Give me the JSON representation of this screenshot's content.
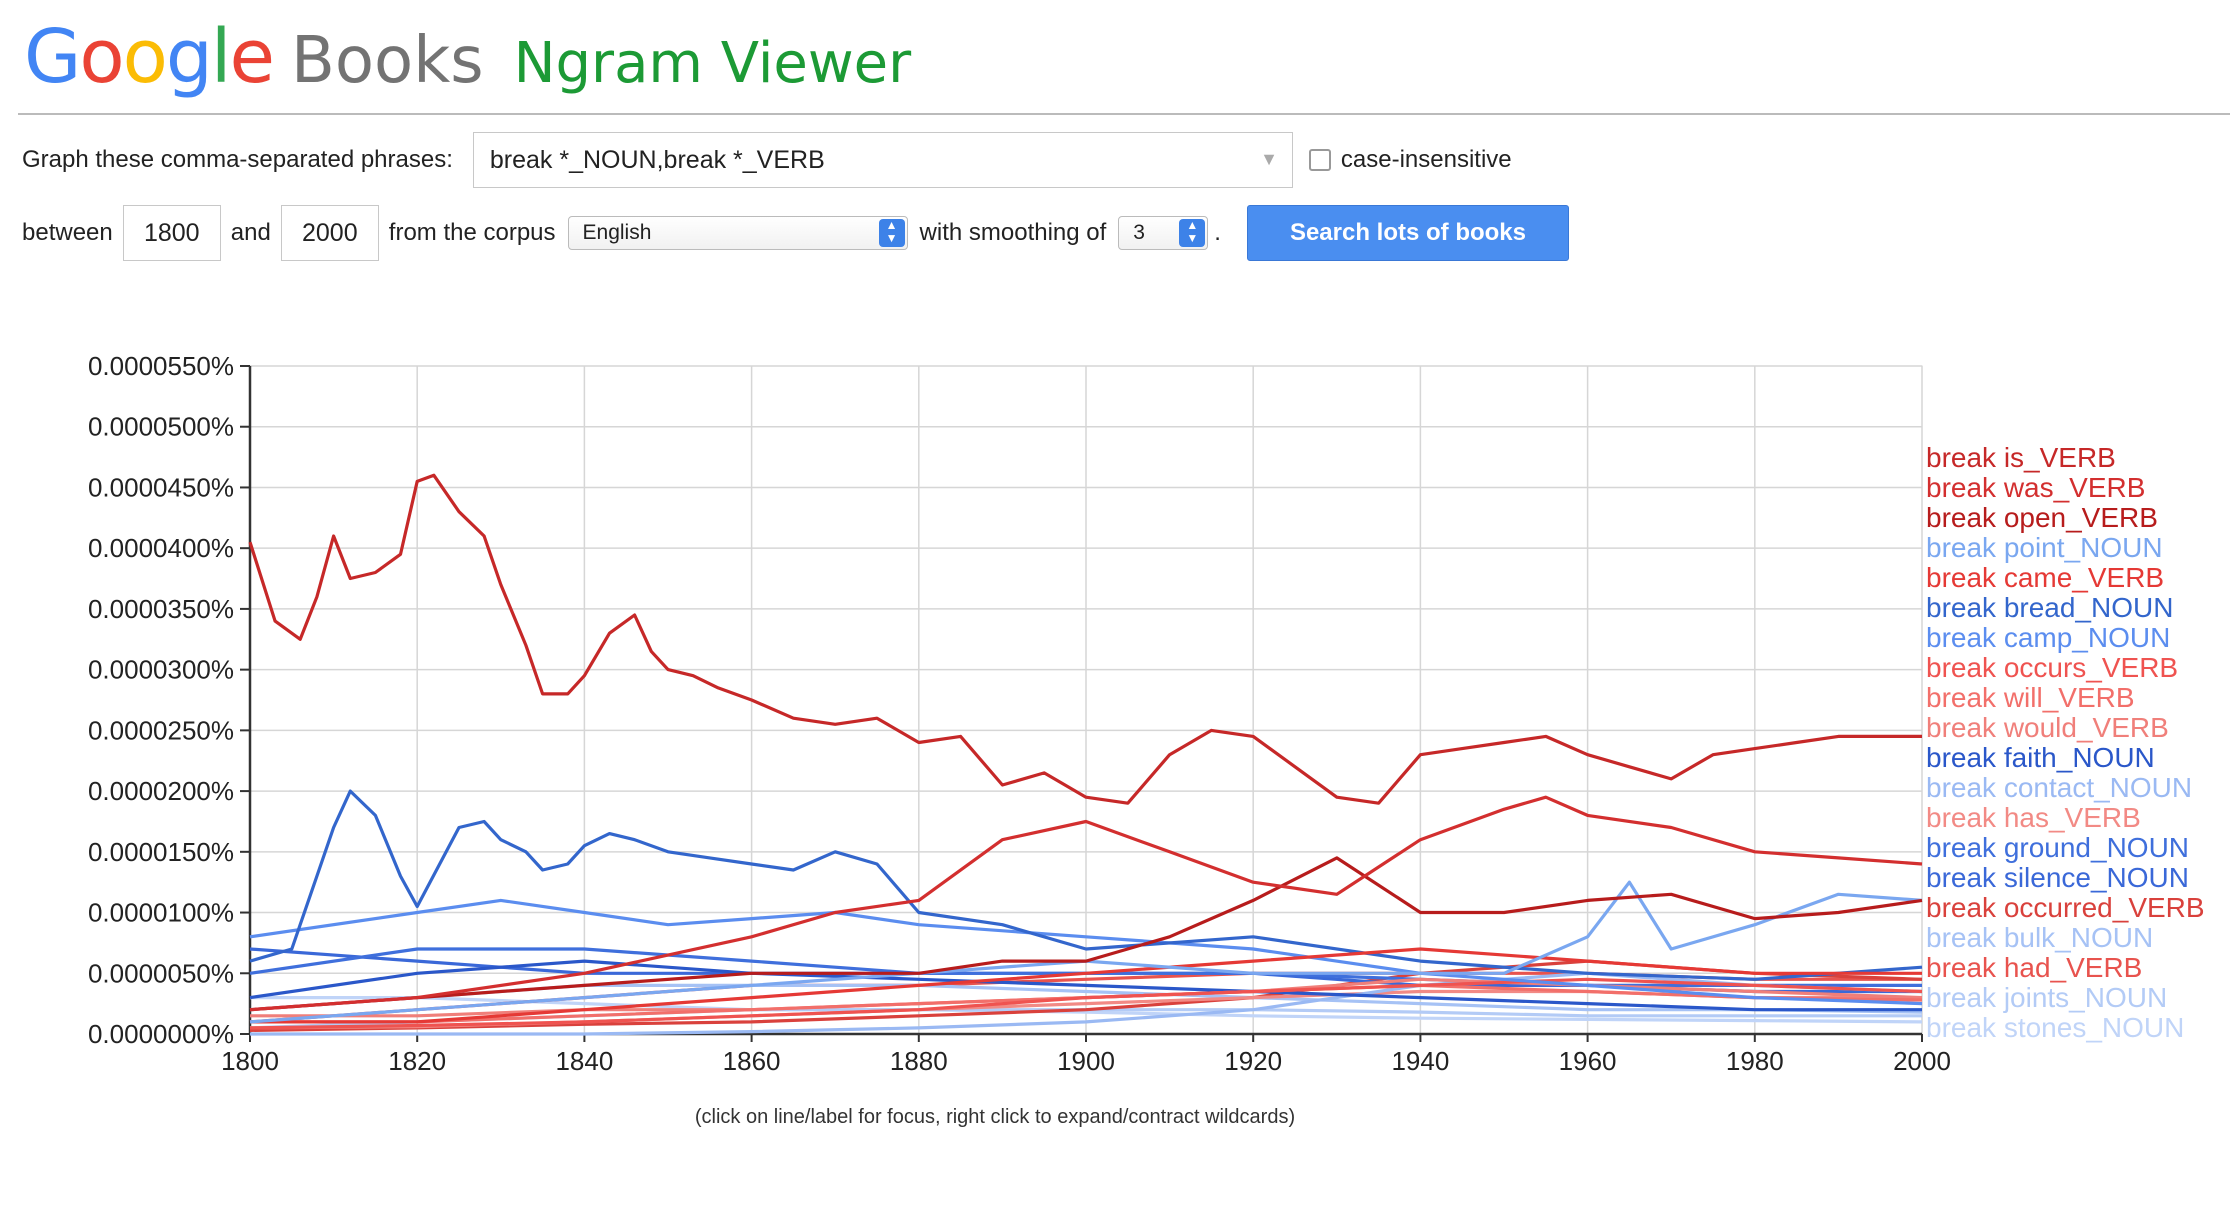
{
  "header": {
    "logo_letters": [
      {
        "ch": "G",
        "color": "#4285f4"
      },
      {
        "ch": "o",
        "color": "#ea4335"
      },
      {
        "ch": "o",
        "color": "#fbbc05"
      },
      {
        "ch": "g",
        "color": "#4285f4"
      },
      {
        "ch": "l",
        "color": "#34a853"
      },
      {
        "ch": "e",
        "color": "#ea4335"
      }
    ],
    "books": "Books",
    "title": "Ngram Viewer"
  },
  "form": {
    "phrases_label": "Graph these comma-separated phrases:",
    "phrases_value": "break *_NOUN,break *_VERB",
    "case_label": "case-insensitive",
    "between_label": "between",
    "start_year": "1800",
    "and_label": "and",
    "end_year": "2000",
    "corpus_label": "from the corpus",
    "corpus_value": "English",
    "smoothing_label": "with smoothing of",
    "smoothing_value": "3",
    "period": ".",
    "search_label": "Search lots of books"
  },
  "hint": "(click on line/label for focus, right click to expand/contract wildcards)",
  "chart_data": {
    "type": "line",
    "xlim": [
      1800,
      2000
    ],
    "ylim": [
      0,
      5.5e-05
    ],
    "x_ticks": [
      "1800",
      "1820",
      "1840",
      "1860",
      "1880",
      "1900",
      "1920",
      "1940",
      "1960",
      "1980",
      "2000"
    ],
    "y_ticks": [
      "0.0000000%",
      "0.0000050%",
      "0.0000100%",
      "0.0000150%",
      "0.0000200%",
      "0.0000250%",
      "0.0000300%",
      "0.0000350%",
      "0.0000400%",
      "0.0000450%",
      "0.0000500%",
      "0.0000550%"
    ],
    "grid": true,
    "legend_position": "right",
    "series": [
      {
        "name": "break is_VERB",
        "color": "#c62828",
        "x": [
          1800,
          1803,
          1806,
          1808,
          1810,
          1812,
          1815,
          1818,
          1820,
          1822,
          1825,
          1828,
          1830,
          1833,
          1835,
          1838,
          1840,
          1843,
          1846,
          1848,
          1850,
          1853,
          1856,
          1860,
          1865,
          1870,
          1875,
          1880,
          1885,
          1890,
          1895,
          1900,
          1905,
          1910,
          1915,
          1920,
          1925,
          1930,
          1935,
          1940,
          1945,
          1950,
          1955,
          1960,
          1965,
          1970,
          1975,
          1980,
          1985,
          1990,
          1995,
          2000
        ],
        "y": [
          4.05e-05,
          3.4e-05,
          3.25e-05,
          3.6e-05,
          4.1e-05,
          3.75e-05,
          3.8e-05,
          3.95e-05,
          4.55e-05,
          4.6e-05,
          4.3e-05,
          4.1e-05,
          3.7e-05,
          3.2e-05,
          2.8e-05,
          2.8e-05,
          2.95e-05,
          3.3e-05,
          3.45e-05,
          3.15e-05,
          3e-05,
          2.95e-05,
          2.85e-05,
          2.75e-05,
          2.6e-05,
          2.55e-05,
          2.6e-05,
          2.4e-05,
          2.45e-05,
          2.05e-05,
          2.15e-05,
          1.95e-05,
          1.9e-05,
          2.3e-05,
          2.5e-05,
          2.45e-05,
          2.2e-05,
          1.95e-05,
          1.9e-05,
          2.3e-05,
          2.35e-05,
          2.4e-05,
          2.45e-05,
          2.3e-05,
          2.2e-05,
          2.1e-05,
          2.3e-05,
          2.35e-05,
          2.4e-05,
          2.45e-05,
          2.45e-05,
          2.45e-05
        ]
      },
      {
        "name": "break was_VERB",
        "color": "#d32f2f",
        "x": [
          1800,
          1820,
          1840,
          1860,
          1870,
          1880,
          1890,
          1900,
          1910,
          1920,
          1930,
          1940,
          1950,
          1955,
          1960,
          1970,
          1980,
          1990,
          2000
        ],
        "y": [
          2e-06,
          3e-06,
          5e-06,
          8e-06,
          1e-05,
          1.1e-05,
          1.6e-05,
          1.75e-05,
          1.5e-05,
          1.25e-05,
          1.15e-05,
          1.6e-05,
          1.85e-05,
          1.95e-05,
          1.8e-05,
          1.7e-05,
          1.5e-05,
          1.45e-05,
          1.4e-05
        ]
      },
      {
        "name": "break open_VERB",
        "color": "#b71c1c",
        "x": [
          1800,
          1820,
          1840,
          1860,
          1880,
          1890,
          1900,
          1910,
          1920,
          1930,
          1940,
          1950,
          1960,
          1970,
          1980,
          1990,
          2000
        ],
        "y": [
          2e-06,
          3e-06,
          4e-06,
          5e-06,
          5e-06,
          6e-06,
          6e-06,
          8e-06,
          1.1e-05,
          1.45e-05,
          1e-05,
          1e-05,
          1.1e-05,
          1.15e-05,
          9.5e-06,
          1e-05,
          1.1e-05
        ]
      },
      {
        "name": "break point_NOUN",
        "color": "#7aa7f0",
        "x": [
          1800,
          1820,
          1840,
          1860,
          1880,
          1900,
          1920,
          1940,
          1950,
          1960,
          1965,
          1970,
          1980,
          1990,
          2000
        ],
        "y": [
          1e-06,
          2e-06,
          3e-06,
          4e-06,
          5e-06,
          6e-06,
          5e-06,
          5e-06,
          5e-06,
          8e-06,
          1.25e-05,
          7e-06,
          9e-06,
          1.15e-05,
          1.1e-05
        ]
      },
      {
        "name": "break came_VERB",
        "color": "#e53935",
        "x": [
          1800,
          1820,
          1840,
          1860,
          1880,
          1900,
          1920,
          1940,
          1960,
          1980,
          2000
        ],
        "y": [
          1e-06,
          1e-06,
          2e-06,
          3e-06,
          4e-06,
          5e-06,
          6e-06,
          7e-06,
          6e-06,
          5e-06,
          5e-06
        ]
      },
      {
        "name": "break bread_NOUN",
        "color": "#3366cc",
        "x": [
          1800,
          1805,
          1808,
          1810,
          1812,
          1815,
          1818,
          1820,
          1825,
          1828,
          1830,
          1833,
          1835,
          1838,
          1840,
          1843,
          1846,
          1850,
          1855,
          1860,
          1865,
          1870,
          1875,
          1880,
          1890,
          1900,
          1920,
          1940,
          1960,
          1980,
          2000
        ],
        "y": [
          6e-06,
          7e-06,
          1.3e-05,
          1.7e-05,
          2e-05,
          1.8e-05,
          1.3e-05,
          1.05e-05,
          1.7e-05,
          1.75e-05,
          1.6e-05,
          1.5e-05,
          1.35e-05,
          1.4e-05,
          1.55e-05,
          1.65e-05,
          1.6e-05,
          1.5e-05,
          1.45e-05,
          1.4e-05,
          1.35e-05,
          1.5e-05,
          1.4e-05,
          1e-05,
          9e-06,
          7e-06,
          8e-06,
          6e-06,
          5e-06,
          4.5e-06,
          5.5e-06
        ]
      },
      {
        "name": "break camp_NOUN",
        "color": "#5b8def",
        "x": [
          1800,
          1820,
          1830,
          1840,
          1850,
          1860,
          1870,
          1880,
          1900,
          1920,
          1940,
          1960,
          1980,
          2000
        ],
        "y": [
          8e-06,
          1e-05,
          1.1e-05,
          1e-05,
          9e-06,
          9.5e-06,
          1e-05,
          9e-06,
          8e-06,
          7e-06,
          5e-06,
          4e-06,
          3e-06,
          2.5e-06
        ]
      },
      {
        "name": "break occurs_VERB",
        "color": "#ef5350",
        "x": [
          1800,
          1820,
          1840,
          1860,
          1880,
          1900,
          1920,
          1940,
          1960,
          1980,
          2000
        ],
        "y": [
          5e-07,
          7e-07,
          1e-06,
          1.5e-06,
          2e-06,
          3e-06,
          3.5e-06,
          4e-06,
          4.5e-06,
          4e-06,
          3.5e-06
        ]
      },
      {
        "name": "break will_VERB",
        "color": "#f26f6a",
        "x": [
          1800,
          1820,
          1840,
          1860,
          1880,
          1900,
          1920,
          1940,
          1960,
          1980,
          2000
        ],
        "y": [
          1e-06,
          1e-06,
          1.5e-06,
          2e-06,
          2.5e-06,
          3e-06,
          3.5e-06,
          4e-06,
          3.5e-06,
          3e-06,
          2.8e-06
        ]
      },
      {
        "name": "break would_VERB",
        "color": "#f07f7a",
        "x": [
          1800,
          1820,
          1840,
          1860,
          1880,
          1900,
          1920,
          1940,
          1960,
          1980,
          2000
        ],
        "y": [
          1.5e-06,
          1.5e-06,
          2e-06,
          2e-06,
          2.5e-06,
          3e-06,
          3.5e-06,
          4.5e-06,
          4e-06,
          3.5e-06,
          3e-06
        ]
      },
      {
        "name": "break faith_NOUN",
        "color": "#2a57c9",
        "x": [
          1800,
          1820,
          1840,
          1860,
          1880,
          1900,
          1920,
          1940,
          1960,
          1980,
          2000
        ],
        "y": [
          3e-06,
          5e-06,
          6e-06,
          5e-06,
          4.5e-06,
          4e-06,
          3.5e-06,
          3e-06,
          2.5e-06,
          2e-06,
          2e-06
        ]
      },
      {
        "name": "break contact_NOUN",
        "color": "#9ab9f3",
        "x": [
          1800,
          1820,
          1840,
          1860,
          1880,
          1900,
          1920,
          1940,
          1960,
          1980,
          2000
        ],
        "y": [
          0,
          0,
          0,
          2e-07,
          5e-07,
          1e-06,
          2e-06,
          4e-06,
          5e-06,
          4e-06,
          3.5e-06
        ]
      },
      {
        "name": "break has_VERB",
        "color": "#f28a85",
        "x": [
          1800,
          1820,
          1840,
          1860,
          1880,
          1900,
          1920,
          1940,
          1960,
          1980,
          2000
        ],
        "y": [
          5e-07,
          6e-07,
          1e-06,
          1.5e-06,
          2e-06,
          2.5e-06,
          3e-06,
          3.5e-06,
          3.5e-06,
          3e-06,
          3e-06
        ]
      },
      {
        "name": "break ground_NOUN",
        "color": "#3f6fdc",
        "x": [
          1800,
          1820,
          1840,
          1860,
          1880,
          1900,
          1920,
          1940,
          1960,
          1980,
          2000
        ],
        "y": [
          5e-06,
          7e-06,
          7e-06,
          6e-06,
          5e-06,
          5e-06,
          5e-06,
          4.5e-06,
          4e-06,
          4e-06,
          4e-06
        ]
      },
      {
        "name": "break silence_NOUN",
        "color": "#3a68d8",
        "x": [
          1800,
          1820,
          1840,
          1860,
          1880,
          1900,
          1920,
          1940,
          1960,
          1980,
          2000
        ],
        "y": [
          7e-06,
          6e-06,
          5e-06,
          5e-06,
          5e-06,
          5e-06,
          5e-06,
          4e-06,
          4e-06,
          3.5e-06,
          3.5e-06
        ]
      },
      {
        "name": "break occurred_VERB",
        "color": "#d9413c",
        "x": [
          1800,
          1820,
          1840,
          1860,
          1880,
          1900,
          1920,
          1940,
          1960,
          1980,
          2000
        ],
        "y": [
          3e-07,
          5e-07,
          8e-07,
          1e-06,
          1.5e-06,
          2e-06,
          3e-06,
          5e-06,
          6e-06,
          5e-06,
          4.5e-06
        ]
      },
      {
        "name": "break bulk_NOUN",
        "color": "#a6c2f5",
        "x": [
          1800,
          1820,
          1840,
          1860,
          1880,
          1900,
          1920,
          1940,
          1960,
          1980,
          2000
        ],
        "y": [
          2e-06,
          3e-06,
          4e-06,
          4e-06,
          4e-06,
          3.5e-06,
          3e-06,
          2.5e-06,
          2e-06,
          2e-06,
          1.8e-06
        ]
      },
      {
        "name": "break had_VERB",
        "color": "#e8534e",
        "x": [
          1800,
          1820,
          1840,
          1860,
          1880,
          1900,
          1920,
          1940,
          1960,
          1980,
          2000
        ],
        "y": [
          1e-06,
          2e-06,
          3e-06,
          4e-06,
          4e-06,
          4.5e-06,
          5e-06,
          5e-06,
          5e-06,
          4.5e-06,
          4.5e-06
        ]
      },
      {
        "name": "break joints_NOUN",
        "color": "#b3cbf6",
        "x": [
          1800,
          1820,
          1840,
          1860,
          1880,
          1900,
          1920,
          1940,
          1960,
          1980,
          2000
        ],
        "y": [
          5e-07,
          1e-06,
          1.5e-06,
          2e-06,
          2e-06,
          2e-06,
          2e-06,
          1.8e-06,
          1.5e-06,
          1.5e-06,
          1.5e-06
        ]
      },
      {
        "name": "break stones_NOUN",
        "color": "#c0d4f8",
        "x": [
          1800,
          1820,
          1840,
          1860,
          1880,
          1900,
          1920,
          1940,
          1960,
          1980,
          2000
        ],
        "y": [
          3e-06,
          3e-06,
          2.5e-06,
          2e-06,
          2e-06,
          1.8e-06,
          1.5e-06,
          1.3e-06,
          1.2e-06,
          1.1e-06,
          1e-06
        ]
      }
    ]
  }
}
